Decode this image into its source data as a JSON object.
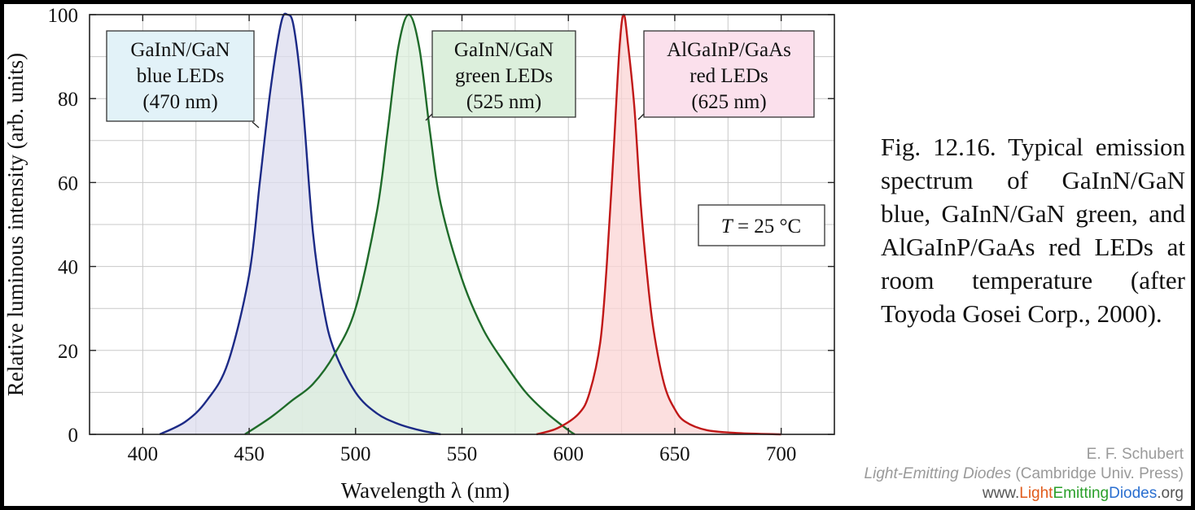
{
  "chart_data": {
    "type": "line",
    "xlabel": "Wavelength λ  (nm)",
    "ylabel": "Relative luminous intensity  (arb. units)",
    "xlim": [
      375,
      725
    ],
    "ylim": [
      0,
      100
    ],
    "xticks": [
      400,
      450,
      500,
      550,
      600,
      650,
      700
    ],
    "yticks": [
      0,
      20,
      40,
      60,
      80,
      100
    ],
    "grid": true,
    "annotation": {
      "prefix": "T",
      "text": " = 25 °C"
    },
    "series": [
      {
        "name_lines": [
          "GaInN/GaN",
          "blue LEDs",
          "(470 nm)"
        ],
        "color": "#1c2a86",
        "fill": "#dcdcee",
        "x": [
          408,
          420,
          430,
          440,
          450,
          455,
          460,
          465,
          468,
          471,
          475,
          480,
          485,
          490,
          500,
          510,
          520,
          530,
          540
        ],
        "y": [
          0,
          3,
          8,
          17,
          38,
          60,
          82,
          98,
          100,
          97,
          80,
          48,
          30,
          20,
          10,
          5,
          2.5,
          1,
          0
        ]
      },
      {
        "name_lines": [
          "GaInN/GaN",
          "green LEDs",
          "(525 nm)"
        ],
        "color": "#1f6b2a",
        "fill": "#dcefdc",
        "x": [
          448,
          460,
          470,
          480,
          490,
          500,
          510,
          515,
          520,
          525,
          530,
          535,
          540,
          550,
          560,
          570,
          580,
          590,
          600,
          603
        ],
        "y": [
          0,
          4,
          8,
          12,
          19,
          30,
          53,
          72,
          92,
          100,
          92,
          72,
          55,
          37,
          25,
          17,
          10,
          5,
          1,
          0
        ]
      },
      {
        "name_lines": [
          "AlGaInP/GaAs",
          "red LEDs",
          "(625 nm)"
        ],
        "color": "#c01818",
        "fill": "#fbd4d4",
        "x": [
          585,
          595,
          605,
          610,
          615,
          618,
          621,
          624,
          626,
          628,
          631,
          634,
          637,
          640,
          645,
          650,
          655,
          665,
          680,
          700
        ],
        "y": [
          0,
          1.5,
          5,
          10,
          22,
          40,
          65,
          92,
          100,
          93,
          78,
          55,
          38,
          25,
          12,
          6,
          3,
          1,
          0.3,
          0
        ]
      }
    ],
    "label_boxes": [
      {
        "fill": "#e2f2f8"
      },
      {
        "fill": "#dcefdc"
      },
      {
        "fill": "#fbe0ec"
      }
    ]
  },
  "caption": "Fig. 12.16. Typical emission spectrum of GaInN/GaN blue, GaInN/GaN green, and AlGaInP/GaAs red LEDs at room temperature (after Toyoda Gosei Corp., 2000).",
  "credit": {
    "author": "E. F. Schubert",
    "book": "Light-Emitting Diodes",
    "publisher": " (Cambridge Univ. Press)",
    "url_prefix": "www.",
    "url_light": "Light",
    "url_emitting": "Emitting",
    "url_diodes": "Diodes",
    "url_suffix": ".org"
  }
}
